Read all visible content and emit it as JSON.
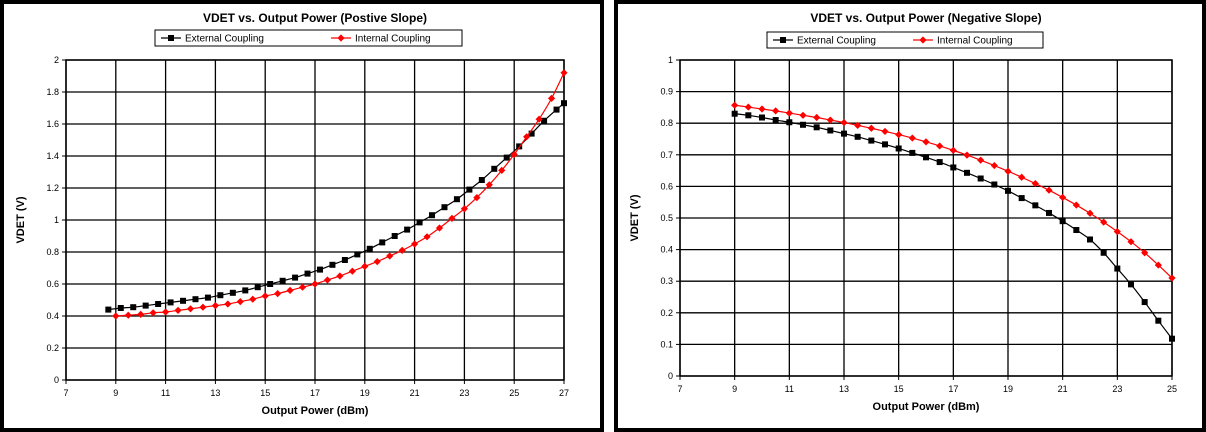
{
  "chart_data": [
    {
      "type": "line",
      "title": "VDET vs. Output Power (Postive Slope)",
      "xlabel": "Output Power (dBm)",
      "ylabel": "VDET (V)",
      "xlim": [
        7,
        27
      ],
      "ylim": [
        0,
        2
      ],
      "x_ticks": [
        "7",
        "9",
        "11",
        "13",
        "15",
        "17",
        "19",
        "21",
        "23",
        "25",
        "27"
      ],
      "y_ticks": [
        "0",
        "0.2",
        "0.4",
        "0.6",
        "0.8",
        "1",
        "1.2",
        "1.4",
        "1.6",
        "1.8",
        "2"
      ],
      "grid": true,
      "legend_position": "top",
      "series": [
        {
          "name": "External Coupling",
          "color": "#000000",
          "marker": "square",
          "x": [
            8.7,
            9.2,
            9.7,
            10.2,
            10.7,
            11.2,
            11.7,
            12.2,
            12.7,
            13.2,
            13.7,
            14.2,
            14.7,
            15.2,
            15.7,
            16.2,
            16.7,
            17.2,
            17.7,
            18.2,
            18.7,
            19.2,
            19.7,
            20.2,
            20.7,
            21.2,
            21.7,
            22.2,
            22.7,
            23.2,
            23.7,
            24.2,
            24.7,
            25.2,
            25.7,
            26.2,
            26.7,
            27.0
          ],
          "y": [
            0.44,
            0.45,
            0.455,
            0.465,
            0.475,
            0.485,
            0.495,
            0.505,
            0.515,
            0.53,
            0.545,
            0.56,
            0.58,
            0.6,
            0.62,
            0.64,
            0.665,
            0.69,
            0.72,
            0.75,
            0.785,
            0.82,
            0.86,
            0.9,
            0.94,
            0.985,
            1.03,
            1.08,
            1.13,
            1.19,
            1.25,
            1.32,
            1.39,
            1.46,
            1.54,
            1.62,
            1.69,
            1.73
          ]
        },
        {
          "name": "Internal Coupling",
          "color": "#ff0000",
          "marker": "diamond",
          "x": [
            9.0,
            9.5,
            10.0,
            10.5,
            11.0,
            11.5,
            12.0,
            12.5,
            13.0,
            13.5,
            14.0,
            14.5,
            15.0,
            15.5,
            16.0,
            16.5,
            17.0,
            17.5,
            18.0,
            18.5,
            19.0,
            19.5,
            20.0,
            20.5,
            21.0,
            21.5,
            22.0,
            22.5,
            23.0,
            23.5,
            24.0,
            24.5,
            25.0,
            25.5,
            26.0,
            26.5,
            27.0
          ],
          "y": [
            0.4,
            0.405,
            0.41,
            0.42,
            0.425,
            0.435,
            0.445,
            0.455,
            0.465,
            0.475,
            0.49,
            0.505,
            0.525,
            0.54,
            0.56,
            0.58,
            0.6,
            0.625,
            0.65,
            0.68,
            0.71,
            0.74,
            0.775,
            0.81,
            0.85,
            0.895,
            0.95,
            1.01,
            1.07,
            1.14,
            1.22,
            1.31,
            1.41,
            1.52,
            1.63,
            1.76,
            1.92
          ]
        }
      ]
    },
    {
      "type": "line",
      "title": "VDET vs. Output Power (Negative Slope)",
      "xlabel": "Output Power (dBm)",
      "ylabel": "VDET (V)",
      "xlim": [
        7,
        25
      ],
      "ylim": [
        0,
        1
      ],
      "x_ticks": [
        "7",
        "9",
        "11",
        "13",
        "15",
        "17",
        "19",
        "21",
        "23",
        "25"
      ],
      "y_ticks": [
        "0",
        "0.1",
        "0.2",
        "0.3",
        "0.4",
        "0.5",
        "0.6",
        "0.7",
        "0.8",
        "0.9",
        "1"
      ],
      "grid": true,
      "legend_position": "top",
      "series": [
        {
          "name": "External Coupling",
          "color": "#000000",
          "marker": "square",
          "x": [
            9.0,
            9.5,
            10.0,
            10.5,
            11.0,
            11.5,
            12.0,
            12.5,
            13.0,
            13.5,
            14.0,
            14.5,
            15.0,
            15.5,
            16.0,
            16.5,
            17.0,
            17.5,
            18.0,
            18.5,
            19.0,
            19.5,
            20.0,
            20.5,
            21.0,
            21.5,
            22.0,
            22.5,
            23.0,
            23.5,
            24.0,
            24.5,
            25.0
          ],
          "y": [
            0.83,
            0.825,
            0.818,
            0.81,
            0.803,
            0.795,
            0.787,
            0.777,
            0.767,
            0.757,
            0.745,
            0.733,
            0.72,
            0.706,
            0.692,
            0.677,
            0.66,
            0.643,
            0.625,
            0.606,
            0.586,
            0.563,
            0.54,
            0.516,
            0.49,
            0.462,
            0.432,
            0.39,
            0.34,
            0.29,
            0.234,
            0.175,
            0.118
          ]
        },
        {
          "name": "Internal Coupling",
          "color": "#ff0000",
          "marker": "diamond",
          "x": [
            9.0,
            9.5,
            10.0,
            10.5,
            11.0,
            11.5,
            12.0,
            12.5,
            13.0,
            13.5,
            14.0,
            14.5,
            15.0,
            15.5,
            16.0,
            16.5,
            17.0,
            17.5,
            18.0,
            18.5,
            19.0,
            19.5,
            20.0,
            20.5,
            21.0,
            21.5,
            22.0,
            22.5,
            23.0,
            23.5,
            24.0,
            24.5,
            25.0
          ],
          "y": [
            0.857,
            0.851,
            0.845,
            0.839,
            0.832,
            0.825,
            0.818,
            0.81,
            0.802,
            0.793,
            0.784,
            0.774,
            0.764,
            0.753,
            0.741,
            0.728,
            0.714,
            0.699,
            0.683,
            0.666,
            0.648,
            0.629,
            0.609,
            0.588,
            0.565,
            0.541,
            0.515,
            0.487,
            0.457,
            0.425,
            0.39,
            0.351,
            0.31
          ]
        }
      ]
    }
  ]
}
